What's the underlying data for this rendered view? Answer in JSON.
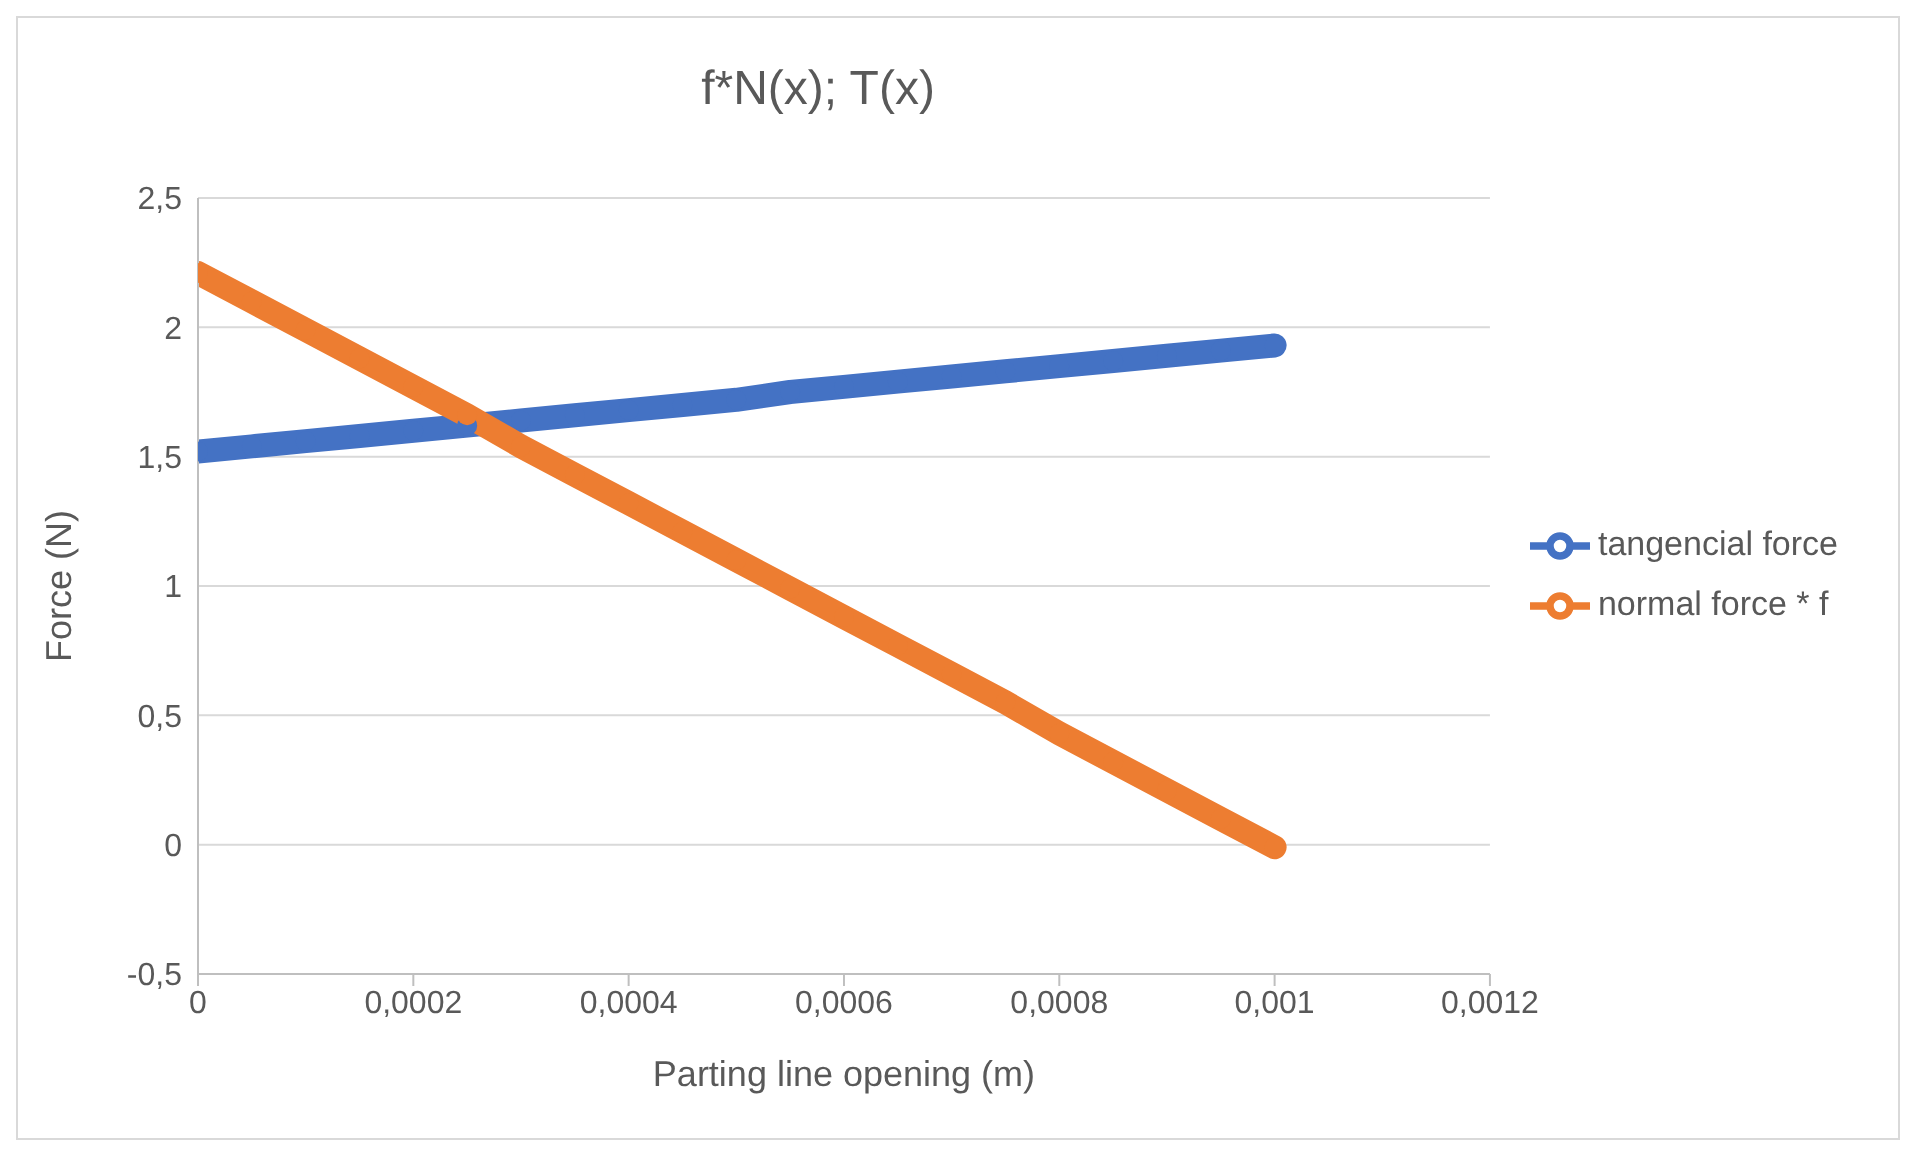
{
  "chart_data": {
    "type": "line",
    "title": "f*N(x); T(x)",
    "xlabel": "Parting line opening (m)",
    "ylabel": "Force (N)",
    "x": [
      0,
      5e-05,
      0.0001,
      0.00015,
      0.0002,
      0.00025,
      0.0003,
      0.00035,
      0.0004,
      0.00045,
      0.0005,
      0.00055,
      0.0006,
      0.00065,
      0.0007,
      0.00075,
      0.0008,
      0.00085,
      0.0009,
      0.00095,
      0.001
    ],
    "series": [
      {
        "name": "tangencial force",
        "color": "#4472c4",
        "values": [
          1.52,
          1.54,
          1.56,
          1.58,
          1.6,
          1.62,
          1.64,
          1.66,
          1.68,
          1.7,
          1.72,
          1.75,
          1.77,
          1.79,
          1.81,
          1.83,
          1.85,
          1.87,
          1.89,
          1.91,
          1.93
        ]
      },
      {
        "name": "normal force * f",
        "color": "#ed7d31",
        "values": [
          2.21,
          2.1,
          1.99,
          1.88,
          1.77,
          1.66,
          1.54,
          1.43,
          1.32,
          1.21,
          1.1,
          0.99,
          0.88,
          0.77,
          0.66,
          0.55,
          0.43,
          0.32,
          0.21,
          0.1,
          -0.01
        ]
      }
    ],
    "xlim": [
      0,
      0.0012
    ],
    "xticks": [
      0,
      {
        "value": 0.0002,
        "label": "0,0002"
      },
      {
        "value": 0.0004,
        "label": "0,0004"
      },
      {
        "value": 0.0006,
        "label": "0,0006"
      },
      {
        "value": 0.0008,
        "label": "0,0008"
      },
      {
        "value": 0.001,
        "label": "0,001"
      },
      {
        "value": 0.0012,
        "label": "0,0012"
      }
    ],
    "ylim": [
      -0.5,
      2.5
    ],
    "yticks": [
      {
        "value": -0.5,
        "label": "-0,5"
      },
      0,
      {
        "value": 0.5,
        "label": "0,5"
      },
      1,
      {
        "value": 1.5,
        "label": "1,5"
      },
      2,
      {
        "value": 2.5,
        "label": "2,5"
      }
    ],
    "grid": "y",
    "legend": "right",
    "marker": "circle",
    "line_style": "solid"
  }
}
